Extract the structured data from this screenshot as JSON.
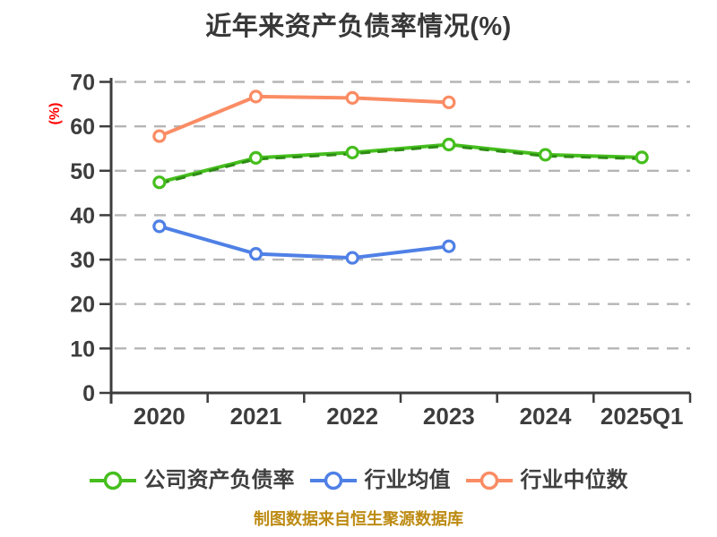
{
  "colors": {
    "background": "#ffffff",
    "title": "#383838",
    "axis": "#3d3d3d",
    "tick_label": "#3d3d3d",
    "grid": "#b5b5b5",
    "ylabel": "#ff0000",
    "legend_text": "#3f3f3f",
    "caption": "#bd8b13"
  },
  "chart_data": {
    "type": "line",
    "title": "近年来资产负债率情况(%)",
    "ylabel": "(%)",
    "xlabel": "",
    "categories": [
      "2020",
      "2021",
      "2022",
      "2023",
      "2024",
      "2025Q1"
    ],
    "series": [
      {
        "name": "公司资产负债率",
        "color": "#46be1e",
        "overlay_dash_color": "#2d8c14",
        "values": [
          47.4,
          52.9,
          54.1,
          55.9,
          53.6,
          53.0
        ]
      },
      {
        "name": "行业均值",
        "color": "#4f80e6",
        "overlay_dash_color": null,
        "values": [
          37.5,
          31.3,
          30.4,
          33.0,
          null,
          null
        ]
      },
      {
        "name": "行业中位数",
        "color": "#fa8c64",
        "overlay_dash_color": null,
        "values": [
          57.8,
          66.7,
          66.4,
          65.4,
          null,
          null
        ]
      }
    ],
    "ylim": [
      0,
      70
    ],
    "ytick_step": 10,
    "grid": "horizontal-dashed",
    "legend_position": "bottom",
    "marker": "circle-white-fill",
    "caption": "制图数据来自恒生聚源数据库"
  }
}
